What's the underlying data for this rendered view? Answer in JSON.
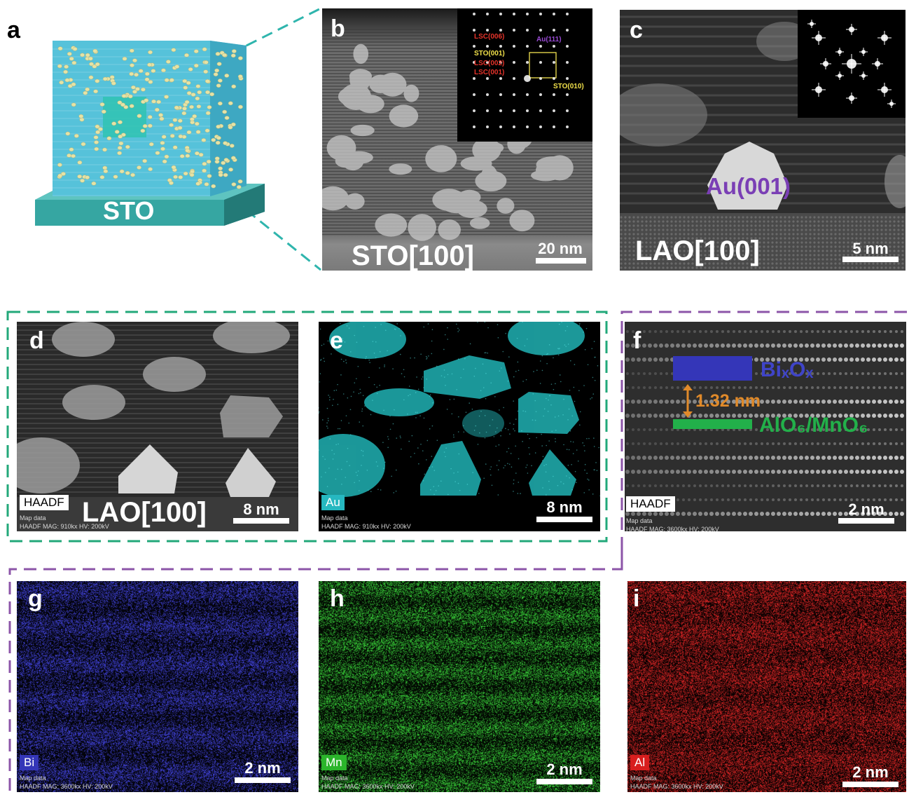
{
  "colors": {
    "green_dash": "#22a87a",
    "purple_dash": "#8c55a8",
    "teal_dash": "#2fb5ad",
    "bi_blue": "#3436b8",
    "mn_green": "#2bb52b",
    "al_red": "#d81e1e",
    "au_cyan": "#26c8c8"
  },
  "panels": {
    "a": {
      "label": "a",
      "substrate": "STO"
    },
    "b": {
      "label": "b",
      "zone": "STO[100]",
      "scale": "20 nm",
      "inset": {
        "lsc006": "LSC(006)",
        "au111": "Au(111)",
        "sto001": "STO(001)",
        "lsc002": "LSC(002)",
        "lsc001": "LSC(001)",
        "sto010": "STO(010)"
      }
    },
    "c": {
      "label": "c",
      "zone": "LAO[100]",
      "scale": "5 nm",
      "particle": "Au(001)"
    },
    "d": {
      "label": "d",
      "tag": "HAADF",
      "zone": "LAO[100]",
      "scale": "8 nm",
      "meta1": "Map data",
      "meta2": "HAADF MAG: 910kx HV: 200kV"
    },
    "e": {
      "label": "e",
      "tag": "Au",
      "scale": "8 nm",
      "meta1": "Map data",
      "meta2": "HAADF MAG: 910kx HV: 200kV"
    },
    "f": {
      "label": "f",
      "tag": "HAADF",
      "scale": "2 nm",
      "layer1": "BiₓOₓ",
      "spacing": "1.32 nm",
      "layer2": "AlO₆/MnO₆",
      "meta1": "Map data",
      "meta2": "HAADF MAG: 3600kx HV: 200kV"
    },
    "g": {
      "label": "g",
      "tag": "Bi",
      "scale": "2 nm",
      "meta1": "Map data",
      "meta2": "HAADF MAG: 3600kx HV: 200kV"
    },
    "h": {
      "label": "h",
      "tag": "Mn",
      "scale": "2 nm",
      "meta1": "Map data",
      "meta2": "HAADF MAG: 3600kx HV: 200kV"
    },
    "i": {
      "label": "i",
      "tag": "Al",
      "scale": "2 nm",
      "meta1": "Map data",
      "meta2": "HAADF MAG: 3600kx HV: 200kV"
    }
  }
}
